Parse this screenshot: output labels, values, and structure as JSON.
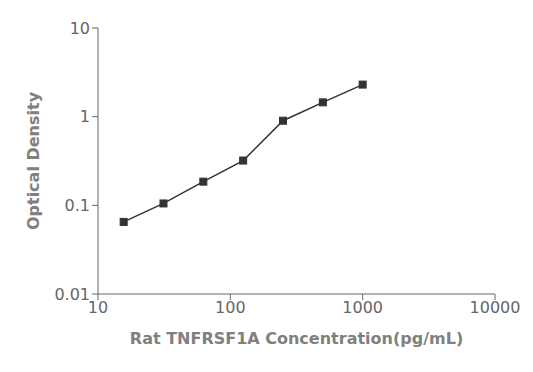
{
  "chart_data": {
    "type": "line",
    "x": [
      15.625,
      31.25,
      62.5,
      125,
      250,
      500,
      1000
    ],
    "values": [
      0.065,
      0.105,
      0.185,
      0.32,
      0.9,
      1.45,
      2.3
    ],
    "xlabel": "Rat TNFRSF1A Concentration(pg/mL)",
    "ylabel": "Optical Density",
    "xlim": [
      10,
      10000
    ],
    "ylim": [
      0.01,
      10
    ],
    "xticks": [
      10,
      100,
      1000,
      10000
    ],
    "yticks": [
      0.01,
      0.1,
      1,
      10
    ],
    "log": true,
    "grid": false,
    "color": "#333333",
    "marker": "square"
  }
}
